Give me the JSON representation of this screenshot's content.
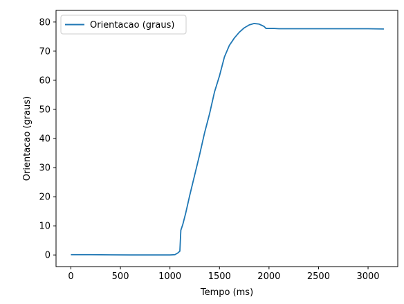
{
  "chart_data": {
    "type": "line",
    "title": "",
    "xlabel": "Tempo (ms)",
    "ylabel": "Orientacao (graus)",
    "xlim": [
      -150,
      3300
    ],
    "ylim": [
      -4,
      84
    ],
    "xticks": [
      0,
      500,
      1000,
      1500,
      2000,
      2500,
      3000
    ],
    "yticks": [
      0,
      10,
      20,
      30,
      40,
      50,
      60,
      70,
      80
    ],
    "grid": false,
    "legend_position": "top-left",
    "series": [
      {
        "name": "Orientacao (graus)",
        "color": "#1f77b4",
        "x": [
          0,
          200,
          400,
          600,
          800,
          1000,
          1050,
          1080,
          1100,
          1110,
          1130,
          1160,
          1200,
          1250,
          1300,
          1350,
          1400,
          1450,
          1500,
          1550,
          1600,
          1650,
          1700,
          1750,
          1800,
          1850,
          1900,
          1950,
          1970,
          2000,
          2050,
          2100,
          2200,
          2400,
          2600,
          2800,
          3000,
          3160
        ],
        "y": [
          0.1,
          0.1,
          0.05,
          0.0,
          0.0,
          0.0,
          0.1,
          0.7,
          1.3,
          8.5,
          10.5,
          14.5,
          20.5,
          27.5,
          34.5,
          42.0,
          48.5,
          56.0,
          61.5,
          68.0,
          72.0,
          74.5,
          76.5,
          78.0,
          79.0,
          79.5,
          79.3,
          78.5,
          77.8,
          77.8,
          77.8,
          77.7,
          77.7,
          77.7,
          77.7,
          77.7,
          77.7,
          77.6
        ]
      }
    ]
  }
}
